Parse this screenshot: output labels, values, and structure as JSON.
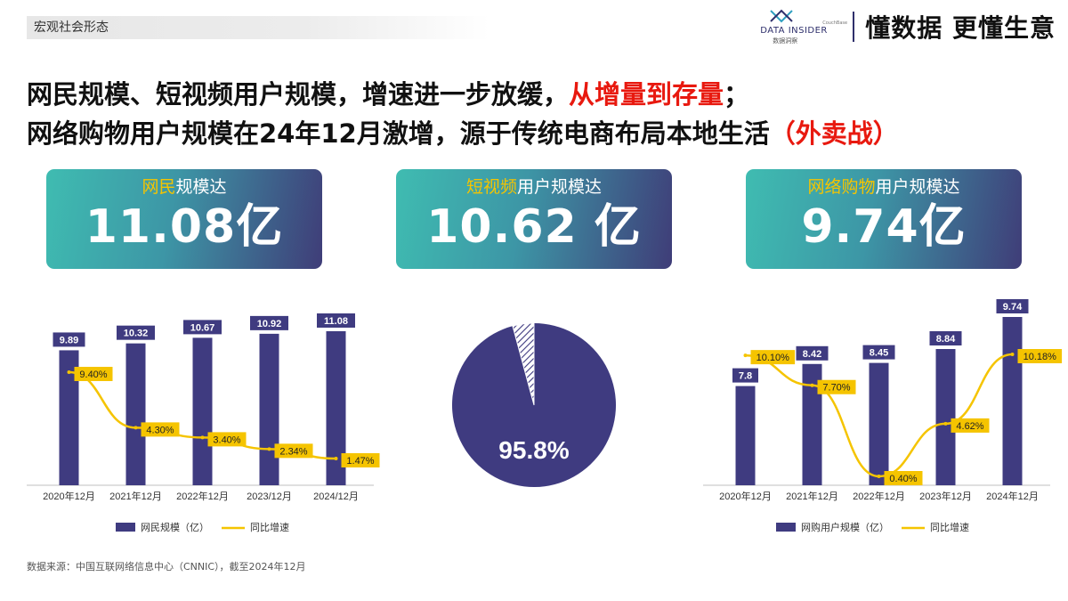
{
  "header": {
    "section_tag": "宏观社会形态",
    "brand_name": "DATA INSIDER",
    "brand_cn": "数据洞察",
    "brand_company": "CouchBase",
    "slogan": "懂数据 更懂生意"
  },
  "headline": {
    "line1_text": "网民规模、短视频用户规模，增速进一步放缓，",
    "line1_highlight": "从增量到存量",
    "line1_end": "；",
    "line2_text": "网络购物用户规模在24年12月激增，源于传统电商布局本地生活",
    "line2_highlight": "（外卖战）"
  },
  "kpis": [
    {
      "label_highlight": "网民",
      "label_rest": "规模达",
      "value": "11.08亿"
    },
    {
      "label_highlight": "短视频",
      "label_rest": "用户规模达",
      "value": "10.62 亿"
    },
    {
      "label_highlight": "网络购物",
      "label_rest": "用户规模达",
      "value": "9.74亿"
    }
  ],
  "colors": {
    "bar": "#3f3b80",
    "line": "#f5c400",
    "accent_red": "#e8190f",
    "kpi_gradient": [
      "#3fbcb1",
      "#3d96a6",
      "#3f3d78"
    ]
  },
  "chart_data": [
    {
      "type": "bar",
      "categories": [
        "2020年12月",
        "2021年12月",
        "2022年12月",
        "2023/12月",
        "2024/12月"
      ],
      "series": [
        {
          "name": "网民规模（亿）",
          "kind": "bar",
          "values": [
            9.89,
            10.32,
            10.67,
            10.92,
            11.08
          ],
          "labels": [
            "9.89",
            "10.32",
            "10.67",
            "10.92",
            "11.08"
          ]
        },
        {
          "name": "同比增速",
          "kind": "line",
          "values": [
            9.4,
            4.3,
            3.4,
            2.34,
            1.47
          ],
          "labels": [
            "9.40%",
            "4.30%",
            "3.40%",
            "2.34%",
            "1.47%"
          ]
        }
      ],
      "legend": "bottom"
    },
    {
      "type": "pie",
      "slices": [
        {
          "label": "95.8%",
          "value": 95.8,
          "style": "solid"
        },
        {
          "label": "",
          "value": 4.2,
          "style": "hatched"
        }
      ]
    },
    {
      "type": "bar",
      "categories": [
        "2020年12月",
        "2021年12月",
        "2022年12月",
        "2023年12月",
        "2024年12月"
      ],
      "series": [
        {
          "name": "网购用户规模（亿）",
          "kind": "bar",
          "values": [
            7.8,
            8.42,
            8.45,
            8.84,
            9.74
          ],
          "labels": [
            "7.8",
            "8.42",
            "8.45",
            "8.84",
            "9.74"
          ]
        },
        {
          "name": "同比增速",
          "kind": "line",
          "values": [
            10.1,
            7.7,
            0.4,
            4.62,
            10.18
          ],
          "labels": [
            "10.10%",
            "7.70%",
            "0.40%",
            "4.62%",
            "10.18%"
          ]
        }
      ],
      "legend": "bottom"
    }
  ],
  "footer": {
    "source": "数据来源：中国互联网络信息中心（CNNIC），截至2024年12月"
  }
}
